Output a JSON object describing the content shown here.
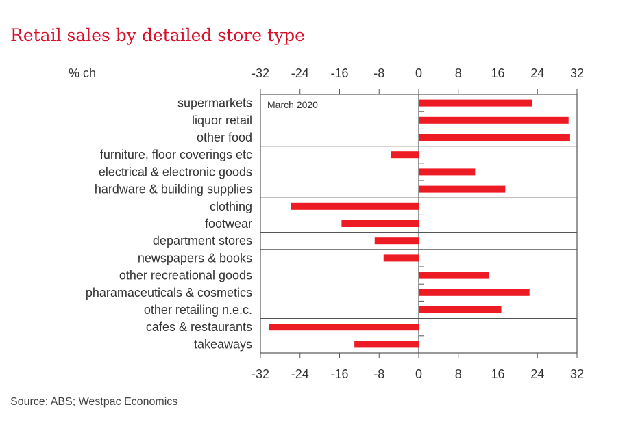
{
  "chart_data": {
    "type": "bar",
    "orientation": "horizontal",
    "title": "Retail sales by detailed store type",
    "ylabel": "% ch",
    "annotation": "March 2020",
    "source": "Source: ABS; Westpac Economics",
    "xlim": [
      -32,
      32
    ],
    "xticks": [
      "-32",
      "-24",
      "-16",
      "-8",
      "0",
      "8",
      "16",
      "24",
      "32"
    ],
    "categories": [
      "supermarkets",
      "liquor retail",
      "other food",
      "furniture, floor coverings etc",
      "electrical & electronic goods",
      "hardware & building supplies",
      "clothing",
      "footwear",
      "department stores",
      "newspapers & books",
      "other recreational goods",
      "pharamaceuticals & cosmetics",
      "other retailing n.e.c.",
      "cafes & restaurants",
      "takeaways"
    ],
    "values": [
      23.0,
      30.3,
      30.6,
      -5.6,
      11.4,
      17.5,
      -25.9,
      -15.6,
      -8.9,
      -7.1,
      14.2,
      22.4,
      16.7,
      -30.3,
      -13.0
    ],
    "group_breaks_after": [
      2,
      5,
      7,
      8,
      12
    ],
    "bar_color": "#ed1c24"
  }
}
